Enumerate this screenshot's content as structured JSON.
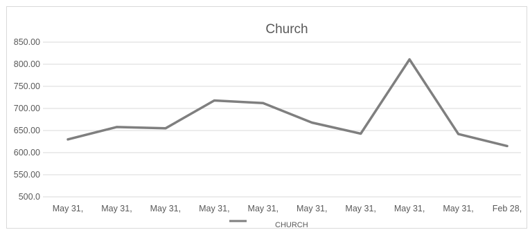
{
  "chart_data": {
    "type": "line",
    "title": "Church",
    "x": [
      "May 31,",
      "May 31,",
      "May 31,",
      "May 31,",
      "May 31,",
      "May 31,",
      "May 31,",
      "May 31,",
      "May 31,",
      "Feb 28,"
    ],
    "series": [
      {
        "name": "CHURCH",
        "color": "#7f7f7f",
        "values": [
          630,
          658,
          655,
          718,
          712,
          668,
          643,
          811,
          642,
          615
        ]
      }
    ],
    "y_tick_labels": [
      "500.0",
      "550.00",
      "600.00",
      "650.00",
      "700.00",
      "750.00",
      "800.00",
      "850.00"
    ],
    "ylim": [
      500,
      850
    ],
    "grid": true,
    "legend": "bottom"
  }
}
